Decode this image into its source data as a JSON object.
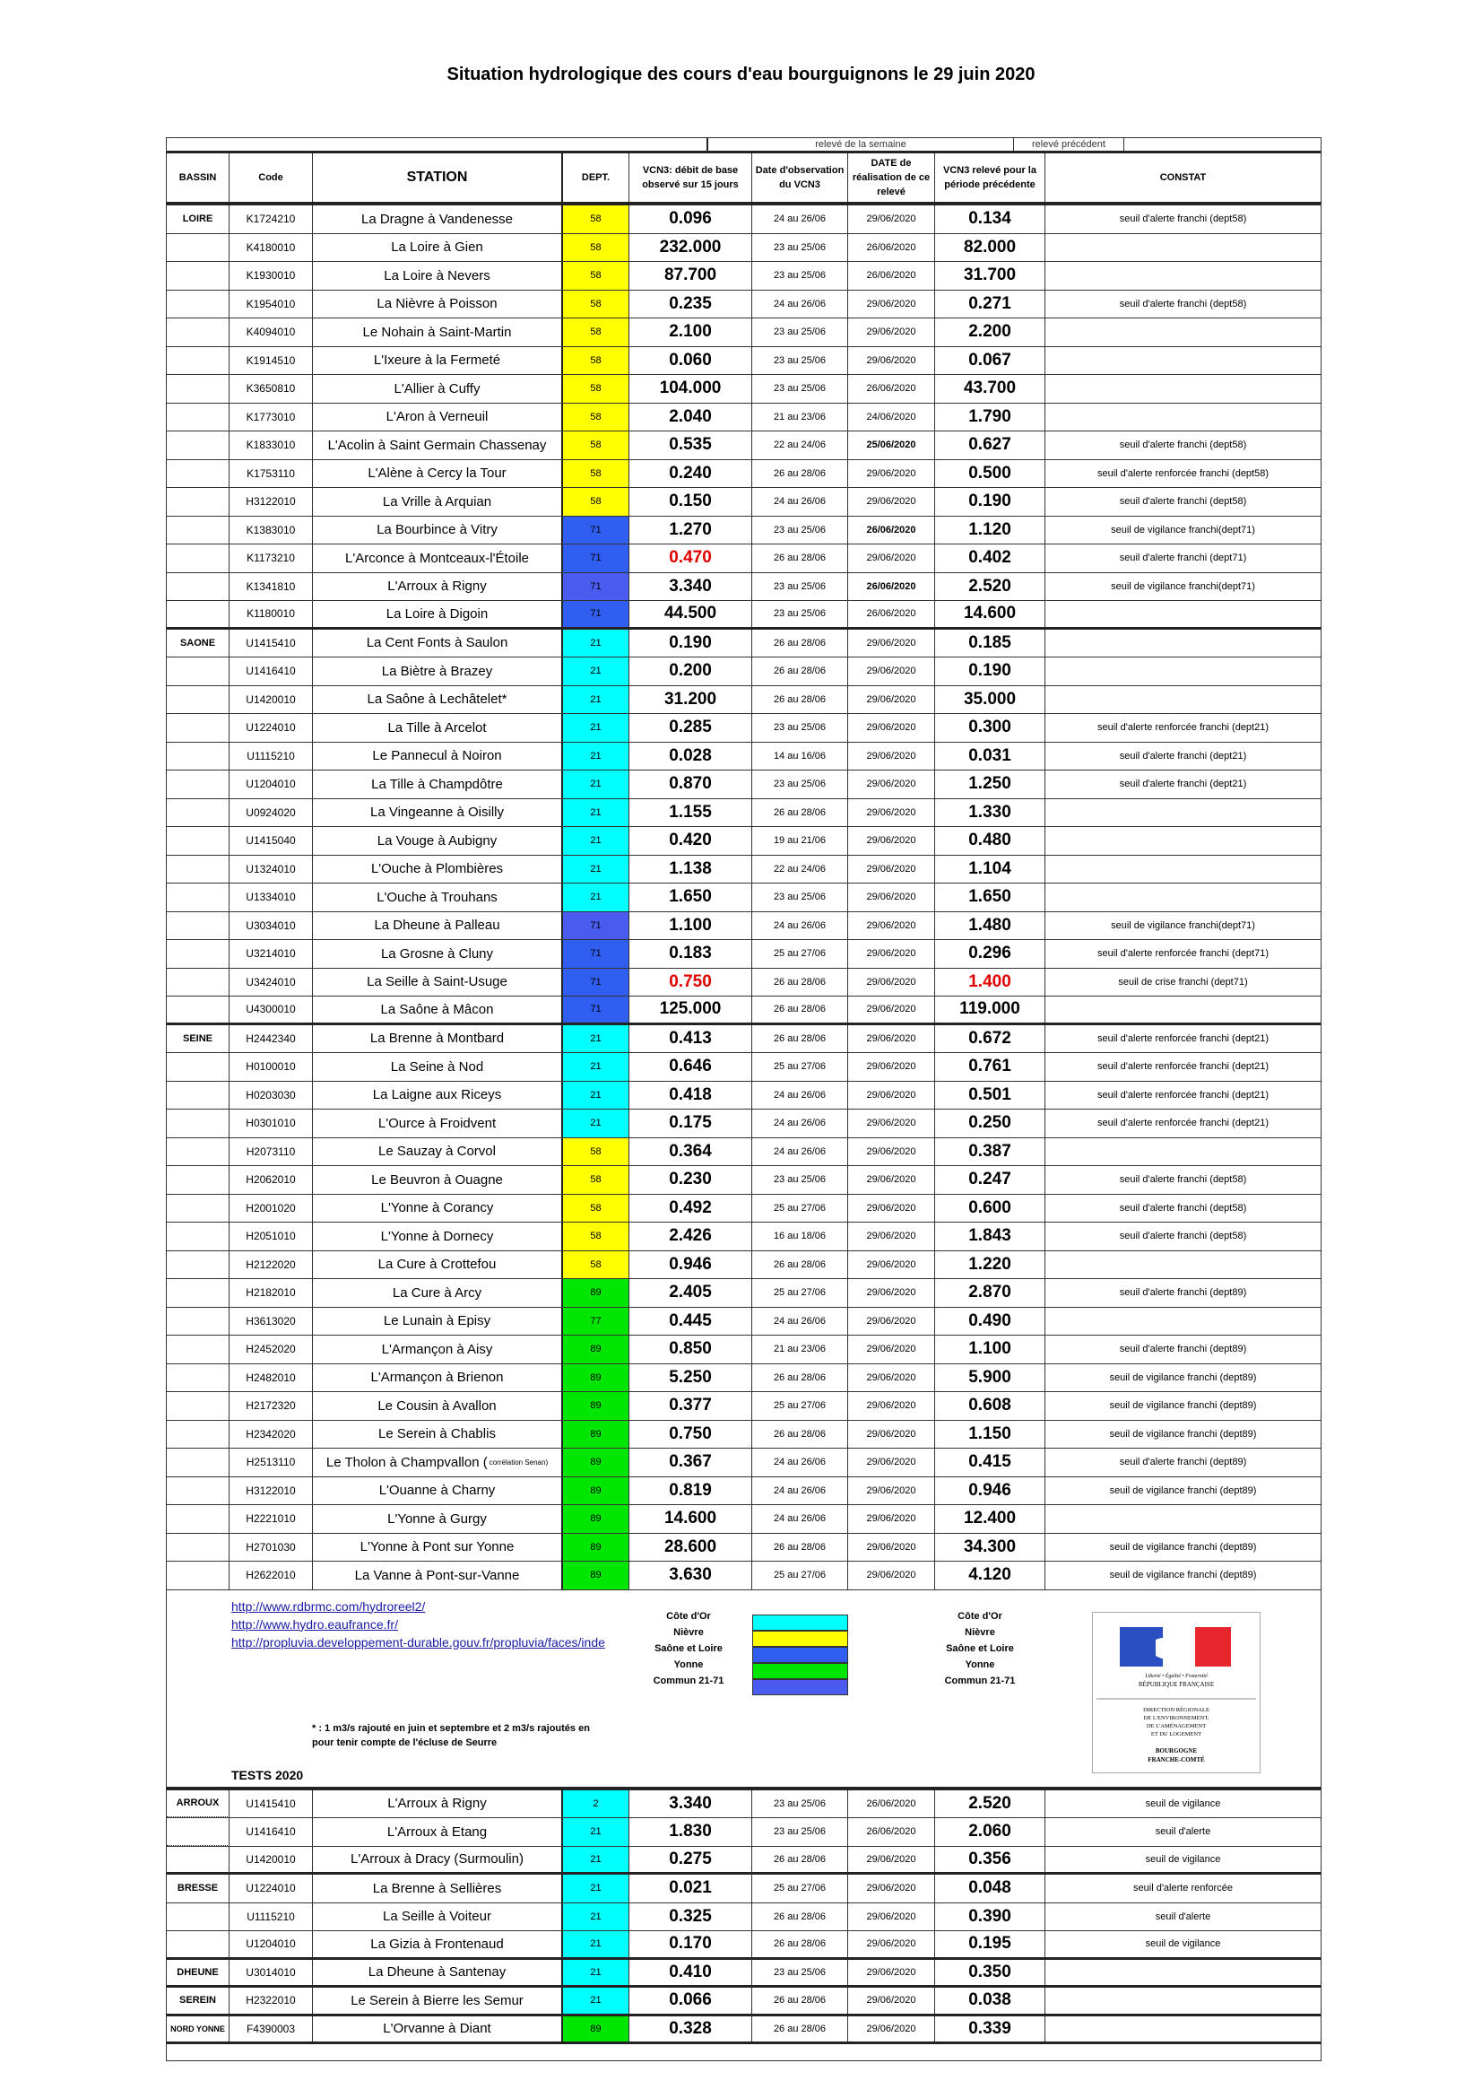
{
  "title": "Situation hydrologique des cours d'eau bourguignons le 29 juin 2020",
  "subheader": {
    "week": "relevé de la semaine",
    "previous": "relevé précédent"
  },
  "headers": {
    "bassin": "BASSIN",
    "code": "Code",
    "station": "STATION",
    "dept": "DEPT.",
    "vcn3": "VCN3: débit de base observé sur 15 jours",
    "obs": "Date d'observation du VCN3",
    "date": "DATE de réalisation de ce relevé",
    "prev": "VCN3 relevé pour la période précédente",
    "constat": "CONSTAT"
  },
  "dept_colors": {
    "21": "#00FFFF",
    "58": "#FFFF00",
    "71": "#2F5EF0",
    "89": "#00E600",
    "77": "#00E600",
    "2": "#00FFFF",
    "commun": "#4A5CF0"
  },
  "rows": [
    {
      "b": "LOIRE",
      "code": "K1724210",
      "st": "La Dragne à Vandenesse",
      "d": "58",
      "v": "0.096",
      "o": "24 au 26/06",
      "dt": "29/06/2020",
      "p": "0.134",
      "c": "seuil d'alerte franchi (dept58)"
    },
    {
      "b": "",
      "code": "K4180010",
      "st": "La Loire à Gien",
      "d": "58",
      "v": "232.000",
      "o": "23 au 25/06",
      "dt": "26/06/2020",
      "p": "82.000",
      "c": ""
    },
    {
      "b": "",
      "code": "K1930010",
      "st": "La Loire à Nevers",
      "d": "58",
      "v": "87.700",
      "o": "23 au 25/06",
      "dt": "26/06/2020",
      "p": "31.700",
      "c": ""
    },
    {
      "b": "",
      "code": "K1954010",
      "st": "La Nièvre à Poisson",
      "d": "58",
      "v": "0.235",
      "o": "24 au 26/06",
      "dt": "29/06/2020",
      "p": "0.271",
      "c": "seuil d'alerte franchi (dept58)"
    },
    {
      "b": "",
      "code": "K4094010",
      "st": "Le Nohain à Saint-Martin",
      "d": "58",
      "v": "2.100",
      "o": "23 au 25/06",
      "dt": "29/06/2020",
      "p": "2.200",
      "c": ""
    },
    {
      "b": "",
      "code": "K1914510",
      "st": "L'Ixeure à la Fermeté",
      "d": "58",
      "v": "0.060",
      "o": "23 au 25/06",
      "dt": "29/06/2020",
      "p": "0.067",
      "c": ""
    },
    {
      "b": "",
      "code": "K3650810",
      "st": "L'Allier à Cuffy",
      "d": "58",
      "v": "104.000",
      "o": "23 au 25/06",
      "dt": "26/06/2020",
      "p": "43.700",
      "c": ""
    },
    {
      "b": "",
      "code": "K1773010",
      "st": "L'Aron à Verneuil",
      "d": "58",
      "v": "2.040",
      "o": "21 au 23/06",
      "dt": "24/06/2020",
      "p": "1.790",
      "c": ""
    },
    {
      "b": "",
      "code": "K1833010",
      "st": "L'Acolin à Saint Germain Chassenay",
      "d": "58",
      "v": "0.535",
      "o": "22 au 24/06",
      "dt": "25/06/2020",
      "dtb": true,
      "p": "0.627",
      "c": "seuil d'alerte franchi (dept58)"
    },
    {
      "b": "",
      "code": "K1753110",
      "st": "L'Alène à Cercy la Tour",
      "d": "58",
      "v": "0.240",
      "o": "26 au 28/06",
      "dt": "29/06/2020",
      "p": "0.500",
      "c": "seuil d'alerte renforcée franchi (dept58)"
    },
    {
      "b": "",
      "code": "H3122010",
      "st": "La Vrille à Arquian",
      "d": "58",
      "v": "0.150",
      "o": "24 au 26/06",
      "dt": "29/06/2020",
      "p": "0.190",
      "c": "seuil d'alerte franchi (dept58)"
    },
    {
      "b": "",
      "code": "K1383010",
      "st": "La Bourbince à Vitry",
      "d": "71",
      "v": "1.270",
      "o": "23 au 25/06",
      "dt": "26/06/2020",
      "dtb": true,
      "p": "1.120",
      "c": "seuil de vigilance franchi(dept71)"
    },
    {
      "b": "",
      "code": "K1173210",
      "st": "L'Arconce à Montceaux-l'Étoile",
      "d": "71",
      "v": "0.470",
      "vr": true,
      "o": "26 au 28/06",
      "dt": "29/06/2020",
      "p": "0.402",
      "c": "seuil d'alerte franchi (dept71)"
    },
    {
      "b": "",
      "code": "K1341810",
      "st": "L'Arroux à Rigny",
      "d": "71",
      "z": "commun",
      "v": "3.340",
      "o": "23 au 25/06",
      "dt": "26/06/2020",
      "dtb": true,
      "p": "2.520",
      "c": "seuil de vigilance franchi(dept71)"
    },
    {
      "b": "",
      "code": "K1180010",
      "st": "La Loire à Digoin",
      "d": "71",
      "v": "44.500",
      "o": "23 au 25/06",
      "dt": "26/06/2020",
      "p": "14.600",
      "c": "",
      "end": true
    },
    {
      "b": "SAONE",
      "code": "U1415410",
      "st": "La Cent Fonts à Saulon",
      "d": "21",
      "v": "0.190",
      "o": "26 au 28/06",
      "dt": "29/06/2020",
      "p": "0.185",
      "c": ""
    },
    {
      "b": "",
      "code": "U1416410",
      "st": "La Biètre à Brazey",
      "d": "21",
      "v": "0.200",
      "o": "26 au 28/06",
      "dt": "29/06/2020",
      "p": "0.190",
      "c": ""
    },
    {
      "b": "",
      "code": "U1420010",
      "st": "La Saône à Lechâtelet*",
      "d": "21",
      "v": "31.200",
      "o": "26 au 28/06",
      "dt": "29/06/2020",
      "p": "35.000",
      "c": ""
    },
    {
      "b": "",
      "code": "U1224010",
      "st": "La Tille à Arcelot",
      "d": "21",
      "v": "0.285",
      "o": "23 au 25/06",
      "dt": "29/06/2020",
      "p": "0.300",
      "c": "seuil d'alerte renforcée franchi (dept21)"
    },
    {
      "b": "",
      "code": "U1115210",
      "st": "Le Pannecul à Noiron",
      "d": "21",
      "v": "0.028",
      "o": "14 au 16/06",
      "dt": "29/06/2020",
      "p": "0.031",
      "c": "seuil d'alerte franchi (dept21)"
    },
    {
      "b": "",
      "code": "U1204010",
      "st": "La Tille à Champdôtre",
      "d": "21",
      "v": "0.870",
      "o": "23 au 25/06",
      "dt": "29/06/2020",
      "p": "1.250",
      "c": "seuil d'alerte franchi (dept21)"
    },
    {
      "b": "",
      "code": "U0924020",
      "st": "La Vingeanne à Oisilly",
      "d": "21",
      "v": "1.155",
      "o": "26 au 28/06",
      "dt": "29/06/2020",
      "p": "1.330",
      "c": ""
    },
    {
      "b": "",
      "code": "U1415040",
      "st": "La Vouge à Aubigny",
      "d": "21",
      "v": "0.420",
      "o": "19 au 21/06",
      "dt": "29/06/2020",
      "p": "0.480",
      "c": ""
    },
    {
      "b": "",
      "code": "U1324010",
      "st": "L'Ouche à Plombières",
      "d": "21",
      "v": "1.138",
      "o": "22 au 24/06",
      "dt": "29/06/2020",
      "p": "1.104",
      "c": ""
    },
    {
      "b": "",
      "code": "U1334010",
      "st": "L'Ouche à Trouhans",
      "d": "21",
      "v": "1.650",
      "o": "23 au 25/06",
      "dt": "29/06/2020",
      "p": "1.650",
      "c": ""
    },
    {
      "b": "",
      "code": "U3034010",
      "st": "La Dheune à Palleau",
      "d": "71",
      "z": "commun",
      "v": "1.100",
      "o": "24 au 26/06",
      "dt": "29/06/2020",
      "p": "1.480",
      "c": "seuil de vigilance franchi(dept71)"
    },
    {
      "b": "",
      "code": "U3214010",
      "st": "La Grosne à Cluny",
      "d": "71",
      "v": "0.183",
      "o": "25 au 27/06",
      "dt": "29/06/2020",
      "p": "0.296",
      "c": "seuil d'alerte renforcée franchi (dept71)"
    },
    {
      "b": "",
      "code": "U3424010",
      "st": "La Seille à Saint-Usuge",
      "d": "71",
      "v": "0.750",
      "vr": true,
      "o": "26 au 28/06",
      "dt": "29/06/2020",
      "p": "1.400",
      "pr": true,
      "c": "seuil de crise franchi (dept71)"
    },
    {
      "b": "",
      "code": "U4300010",
      "st": "La Saône à Mâcon",
      "d": "71",
      "v": "125.000",
      "o": "26 au 28/06",
      "dt": "29/06/2020",
      "p": "119.000",
      "c": "",
      "end": true
    },
    {
      "b": "SEINE",
      "code": "H2442340",
      "st": "La Brenne à Montbard",
      "d": "21",
      "v": "0.413",
      "o": "26 au 28/06",
      "dt": "29/06/2020",
      "p": "0.672",
      "c": "seuil d'alerte renforcée franchi (dept21)"
    },
    {
      "b": "",
      "code": "H0100010",
      "st": "La Seine à Nod",
      "d": "21",
      "v": "0.646",
      "o": "25 au 27/06",
      "dt": "29/06/2020",
      "p": "0.761",
      "c": "seuil d'alerte renforcée franchi (dept21)"
    },
    {
      "b": "",
      "code": "H0203030",
      "st": "La Laigne aux Riceys",
      "d": "21",
      "v": "0.418",
      "o": "24 au 26/06",
      "dt": "29/06/2020",
      "p": "0.501",
      "c": "seuil d'alerte renforcée franchi (dept21)"
    },
    {
      "b": "",
      "code": "H0301010",
      "st": "L'Ource à Froidvent",
      "d": "21",
      "v": "0.175",
      "o": "24 au 26/06",
      "dt": "29/06/2020",
      "p": "0.250",
      "c": "seuil d'alerte renforcée franchi (dept21)"
    },
    {
      "b": "",
      "code": "H2073110",
      "st": "Le Sauzay à Corvol",
      "d": "58",
      "v": "0.364",
      "o": "24 au 26/06",
      "dt": "29/06/2020",
      "p": "0.387",
      "c": ""
    },
    {
      "b": "",
      "code": "H2062010",
      "st": "Le Beuvron à Ouagne",
      "d": "58",
      "v": "0.230",
      "o": "23 au 25/06",
      "dt": "29/06/2020",
      "p": "0.247",
      "c": "seuil d'alerte franchi (dept58)"
    },
    {
      "b": "",
      "code": "H2001020",
      "st": "L'Yonne à Corancy",
      "d": "58",
      "v": "0.492",
      "o": "25 au 27/06",
      "dt": "29/06/2020",
      "p": "0.600",
      "c": "seuil d'alerte franchi (dept58)"
    },
    {
      "b": "",
      "code": "H2051010",
      "st": "L'Yonne à Dornecy",
      "d": "58",
      "v": "2.426",
      "o": "16 au 18/06",
      "dt": "29/06/2020",
      "p": "1.843",
      "c": "seuil d'alerte franchi (dept58)"
    },
    {
      "b": "",
      "code": "H2122020",
      "st": "La Cure à Crottefou",
      "d": "58",
      "v": "0.946",
      "o": "26 au 28/06",
      "dt": "29/06/2020",
      "p": "1.220",
      "c": ""
    },
    {
      "b": "",
      "code": "H2182010",
      "st": "La Cure à Arcy",
      "d": "89",
      "v": "2.405",
      "o": "25 au 27/06",
      "dt": "29/06/2020",
      "p": "2.870",
      "c": "seuil d'alerte franchi (dept89)"
    },
    {
      "b": "",
      "code": "H3613020",
      "st": "Le Lunain à Episy",
      "d": "77",
      "v": "0.445",
      "o": "24 au 26/06",
      "dt": "29/06/2020",
      "p": "0.490",
      "c": ""
    },
    {
      "b": "",
      "code": "H2452020",
      "st": "L'Armançon à Aisy",
      "d": "89",
      "v": "0.850",
      "o": "21 au 23/06",
      "dt": "29/06/2020",
      "p": "1.100",
      "c": "seuil d'alerte franchi (dept89)"
    },
    {
      "b": "",
      "code": "H2482010",
      "st": "L'Armançon à Brienon",
      "d": "89",
      "v": "5.250",
      "o": "26 au 28/06",
      "dt": "29/06/2020",
      "p": "5.900",
      "c": "seuil de vigilance franchi (dept89)"
    },
    {
      "b": "",
      "code": "H2172320",
      "st": "Le Cousin à Avallon",
      "d": "89",
      "v": "0.377",
      "o": "25 au 27/06",
      "dt": "29/06/2020",
      "p": "0.608",
      "c": "seuil de vigilance franchi (dept89)"
    },
    {
      "b": "",
      "code": "H2342020",
      "st": "Le Serein à Chablis",
      "d": "89",
      "v": "0.750",
      "o": "26 au 28/06",
      "dt": "29/06/2020",
      "p": "1.150",
      "c": "seuil de vigilance franchi (dept89)"
    },
    {
      "b": "",
      "code": "H2513110",
      "st": "Le Tholon à Champvallon (",
      "note": "corrélation Senan)",
      "d": "89",
      "v": "0.367",
      "o": "24 au 26/06",
      "dt": "29/06/2020",
      "p": "0.415",
      "c": "seuil d'alerte franchi (dept89)"
    },
    {
      "b": "",
      "code": "H3122010",
      "st": "L'Ouanne à Charny",
      "d": "89",
      "v": "0.819",
      "o": "24 au 26/06",
      "dt": "29/06/2020",
      "p": "0.946",
      "c": "seuil de vigilance franchi (dept89)"
    },
    {
      "b": "",
      "code": "H2221010",
      "st": "L'Yonne à Gurgy",
      "d": "89",
      "v": "14.600",
      "o": "24 au 26/06",
      "dt": "29/06/2020",
      "p": "12.400",
      "c": ""
    },
    {
      "b": "",
      "code": "H2701030",
      "st": "L'Yonne à Pont sur Yonne",
      "d": "89",
      "v": "28.600",
      "o": "26 au 28/06",
      "dt": "29/06/2020",
      "p": "34.300",
      "c": "seuil de vigilance franchi (dept89)"
    },
    {
      "b": "",
      "code": "H2622010",
      "st": "La Vanne à Pont-sur-Vanne",
      "d": "89",
      "v": "3.630",
      "o": "25 au 27/06",
      "dt": "29/06/2020",
      "p": "4.120",
      "c": "seuil de vigilance franchi (dept89)"
    }
  ],
  "footer": {
    "links": [
      "http://www.rdbrmc.com/hydroreel2/",
      "http://www.hydro.eaufrance.fr/",
      "http://propluvia.developpement-durable.gouv.fr/propluvia/faces/inde"
    ],
    "legend": [
      {
        "label": "Côte d'Or",
        "color": "#00FFFF"
      },
      {
        "label": "Nièvre",
        "color": "#FFFF00"
      },
      {
        "label": "Saône et Loire",
        "color": "#2F5EF0"
      },
      {
        "label": "Yonne",
        "color": "#00E600"
      },
      {
        "label": "Commun 21-71",
        "color": "#4A5CF0"
      }
    ],
    "note_line1": "* : 1 m3/s rajouté en juin et septembre et 2 m3/s rajoutés en",
    "note_line2": "pour tenir compte de l'écluse de Seurre",
    "tests_title": "TESTS 2020",
    "logo_text": {
      "motto": "Liberté • Égalité • Fraternité",
      "republic": "RÉPUBLIQUE FRANÇAISE",
      "direction": "DIRECTION RÉGIONALE DE L'ENVIRONNEMENT, DE L'AMÉNAGEMENT ET DU LOGEMENT",
      "region": "BOURGOGNE FRANCHE-COMTÉ"
    }
  },
  "test_rows": [
    {
      "b": "ARROUX",
      "code": "U1415410",
      "st": "L'Arroux à Rigny",
      "d": "2",
      "v": "3.340",
      "o": "23 au 25/06",
      "dt": "26/06/2020",
      "p": "2.520",
      "c": "seuil de vigilance",
      "dot": true
    },
    {
      "b": "",
      "code": "U1416410",
      "st": "L'Arroux à Etang",
      "d": "21",
      "v": "1.830",
      "o": "23 au 25/06",
      "dt": "26/06/2020",
      "p": "2.060",
      "c": "seuil d'alerte",
      "dot": true
    },
    {
      "b": "",
      "code": "U1420010",
      "st": "L'Arroux à Dracy (Surmoulin)",
      "d": "21",
      "v": "0.275",
      "o": "26 au 28/06",
      "dt": "29/06/2020",
      "p": "0.356",
      "c": "seuil de vigilance",
      "end": true
    },
    {
      "b": "BRESSE",
      "code": "U1224010",
      "st": "La Brenne à Sellières",
      "d": "21",
      "v": "0.021",
      "o": "25 au 27/06",
      "dt": "29/06/2020",
      "p": "0.048",
      "c": "seuil d'alerte renforcée"
    },
    {
      "b": "",
      "code": "U1115210",
      "st": "La Seille à Voiteur",
      "d": "21",
      "v": "0.325",
      "o": "26 au 28/06",
      "dt": "29/06/2020",
      "p": "0.390",
      "c": "seuil d'alerte"
    },
    {
      "b": "",
      "code": "U1204010",
      "st": "La Gizia à Frontenaud",
      "d": "21",
      "v": "0.170",
      "o": "26 au 28/06",
      "dt": "29/06/2020",
      "p": "0.195",
      "c": "seuil de vigilance",
      "end": true
    },
    {
      "b": "DHEUNE",
      "code": "U3014010",
      "st": "La Dheune à Santenay",
      "d": "21",
      "v": "0.410",
      "o": "23 au 25/06",
      "dt": "29/06/2020",
      "p": "0.350",
      "c": "",
      "end": true
    },
    {
      "b": "SEREIN",
      "code": "H2322010",
      "st": "Le Serein à Bierre les Semur",
      "d": "21",
      "v": "0.066",
      "o": "26 au 28/06",
      "dt": "29/06/2020",
      "p": "0.038",
      "c": "",
      "end": true
    },
    {
      "b": "NORD YONNE",
      "code": "F4390003",
      "st": "L'Orvanne à Diant",
      "d": "89",
      "v": "0.328",
      "o": "26 au 28/06",
      "dt": "29/06/2020",
      "p": "0.339",
      "c": "",
      "end": true
    }
  ]
}
